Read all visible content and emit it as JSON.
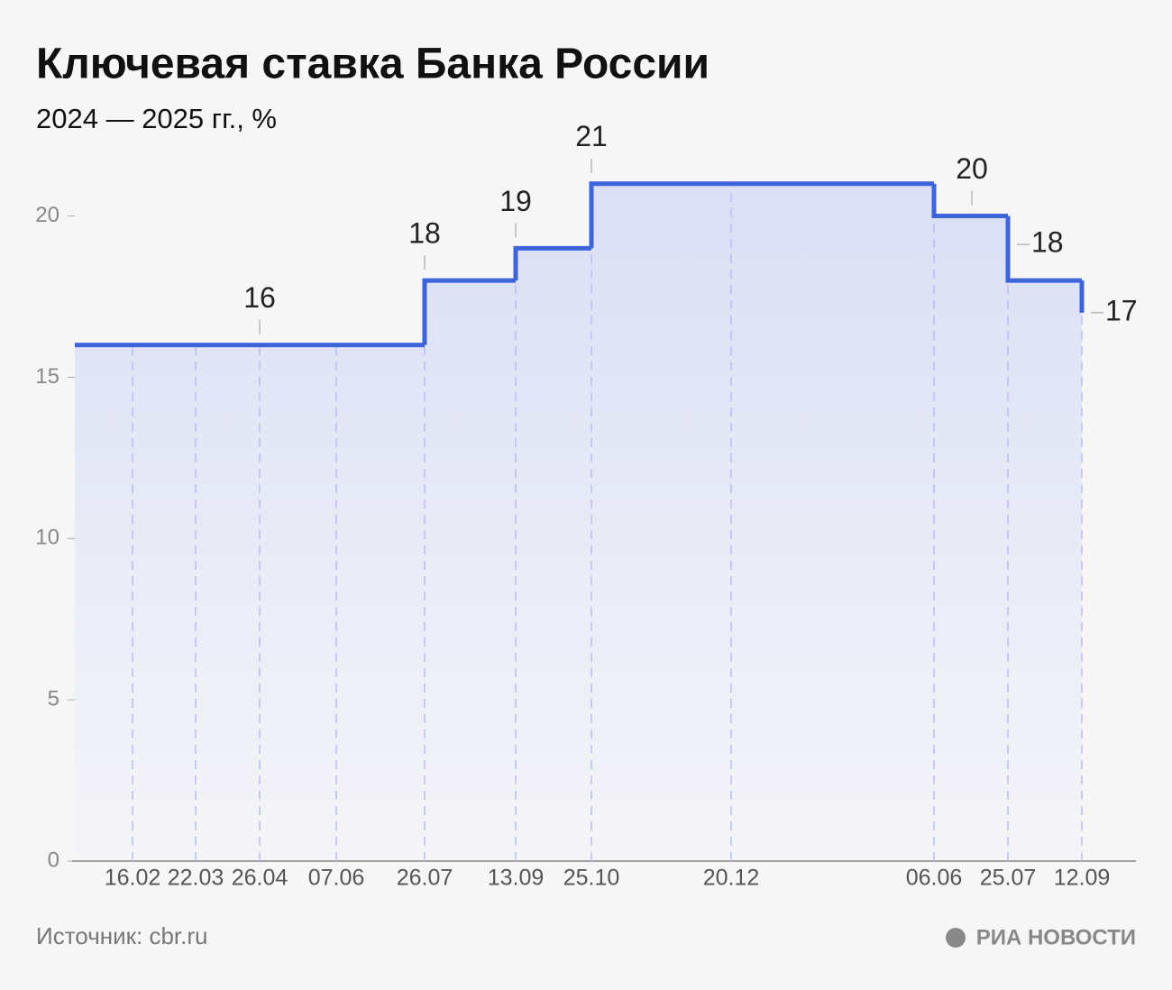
{
  "chart_data": {
    "type": "step",
    "title": "Ключевая ставка Банка России",
    "subtitle": "2024 — 2025 гг., %",
    "categories": [
      "16.02",
      "22.03",
      "26.04",
      "07.06",
      "26.07",
      "13.09",
      "25.10",
      "20.12",
      "06.06",
      "25.07",
      "12.09"
    ],
    "series": [
      {
        "name": "Ключевая ставка",
        "color": "#3e64dc",
        "values": [
          16,
          16,
          16,
          16,
          18,
          19,
          21,
          21,
          20,
          18,
          17
        ]
      }
    ],
    "ylim": [
      0,
      22
    ],
    "yticks": [
      0,
      5,
      10,
      15,
      20
    ],
    "source": "Источник: cbr.ru",
    "logo": "РИА НОВОСТИ"
  }
}
